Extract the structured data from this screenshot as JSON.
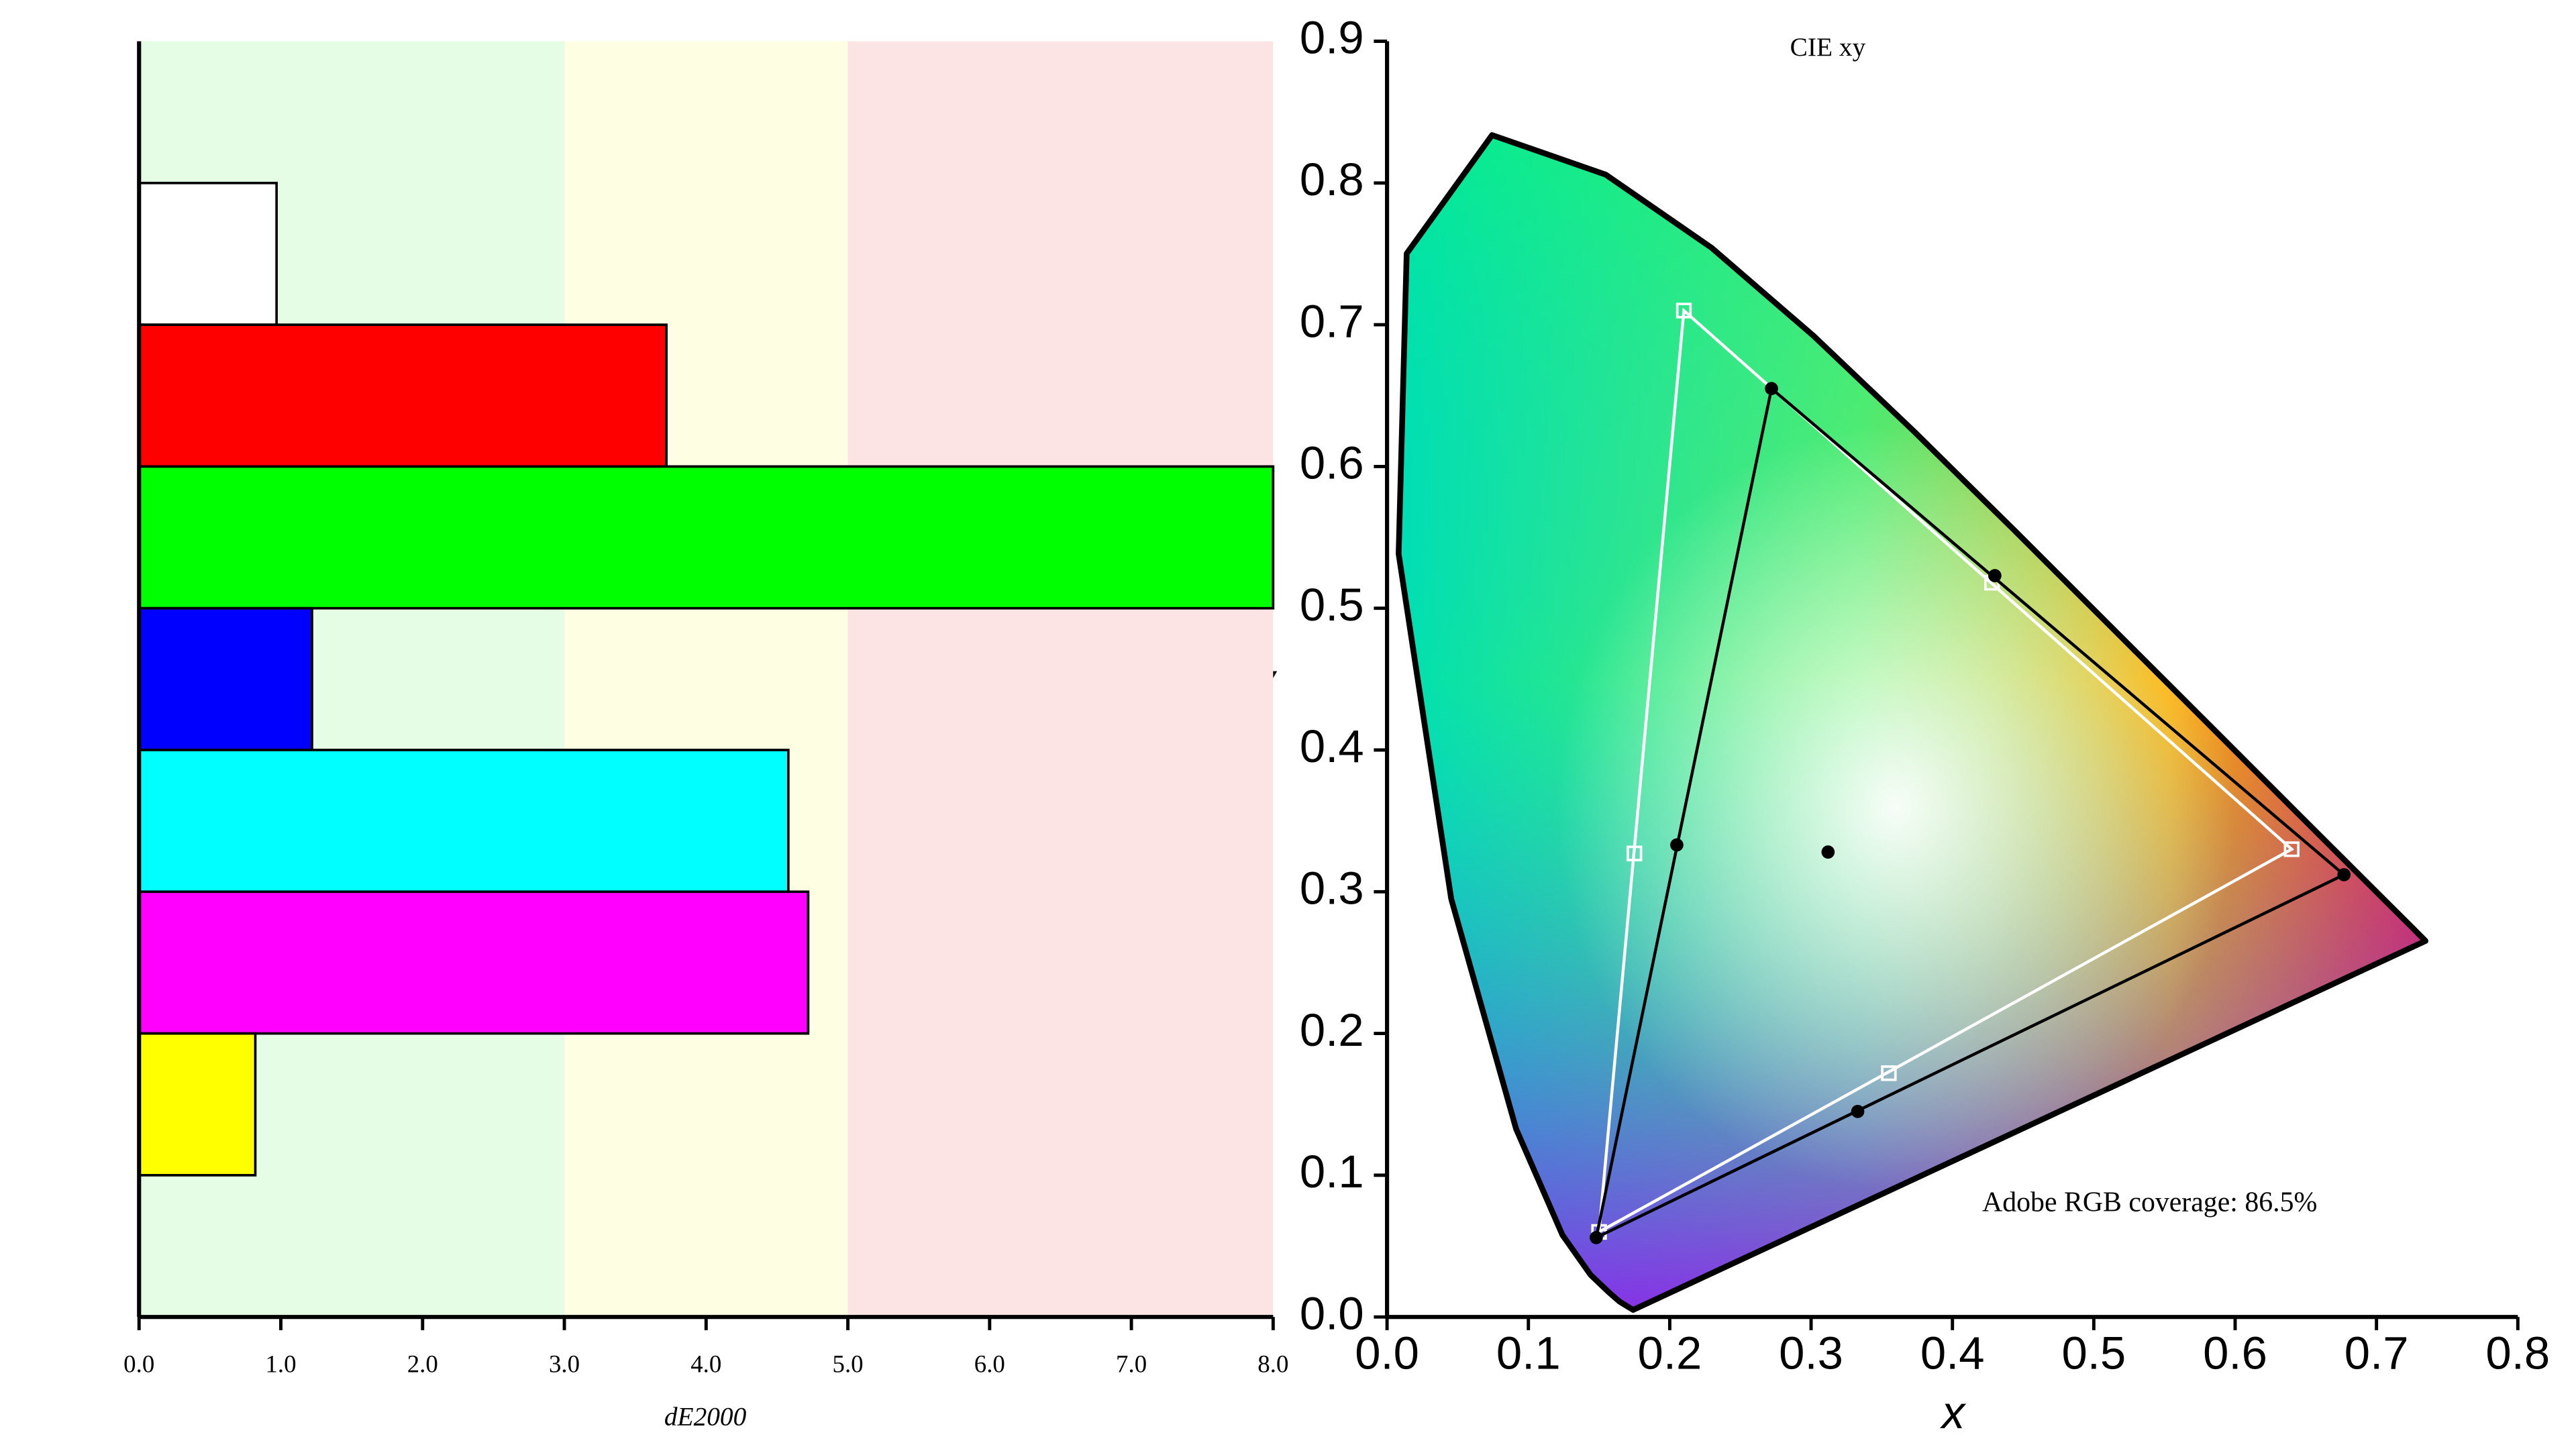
{
  "chart_data": [
    {
      "type": "bar",
      "orientation": "horizontal",
      "categories": [
        null,
        null,
        null,
        null,
        null,
        null,
        null,
        null,
        null
      ],
      "values": [
        null,
        0.97,
        3.72,
        8.0,
        1.22,
        4.58,
        4.72,
        0.82,
        null
      ],
      "colors": [
        null,
        "#ffffff",
        "#ff0000",
        "#00ff00",
        "#0000ff",
        "#00ffff",
        "#ff00ff",
        "#ffff00",
        null
      ],
      "xlabel": "dE2000",
      "xlim": [
        0,
        8
      ],
      "xticks": [
        {
          "value": 0,
          "label": "0.0"
        },
        {
          "value": 1,
          "label": "1.0"
        },
        {
          "value": 2,
          "label": "2.0"
        },
        {
          "value": 3,
          "label": "3.0"
        },
        {
          "value": 4,
          "label": "4.0"
        },
        {
          "value": 5,
          "label": "5.0"
        },
        {
          "value": 6,
          "label": "6.0"
        },
        {
          "value": 7,
          "label": "7.0"
        },
        {
          "value": 8,
          "label": "8.0"
        }
      ],
      "bands": [
        {
          "from": 0,
          "to": 3,
          "color": "#e5fde5"
        },
        {
          "from": 3,
          "to": 5,
          "color": "#fefee2"
        },
        {
          "from": 5,
          "to": 8,
          "color": "#fde4e4"
        }
      ]
    },
    {
      "type": "scatter",
      "title": "CIE xy",
      "xlabel": "x",
      "ylabel": "y",
      "annotation": "Adobe RGB coverage: 86.5%",
      "xlim": [
        0,
        0.8
      ],
      "ylim": [
        0,
        0.9
      ],
      "xticks": [
        {
          "value": 0,
          "label": "0.0"
        },
        0.1,
        0.2,
        0.3,
        0.4,
        0.5,
        0.6,
        0.7,
        0.8
      ],
      "yticks": [
        {
          "value": 0,
          "label": "0.0"
        },
        0.1,
        0.2,
        0.3,
        0.4,
        0.5,
        0.6,
        0.7,
        0.8,
        0.9
      ],
      "locus": {
        "x": [
          0.1741,
          0.1644,
          0.1566,
          0.144,
          0.1241,
          0.0913,
          0.0454,
          0.0082,
          0.0139,
          0.0743,
          0.1547,
          0.2296,
          0.3016,
          0.3731,
          0.4441,
          0.5125,
          0.5752,
          0.627,
          0.6915,
          0.726,
          0.7347
        ],
        "y": [
          0.005,
          0.0109,
          0.0177,
          0.0297,
          0.0578,
          0.1327,
          0.295,
          0.5384,
          0.7502,
          0.8338,
          0.8059,
          0.7543,
          0.6923,
          0.6245,
          0.5547,
          0.4866,
          0.4242,
          0.3725,
          0.3083,
          0.274,
          0.2653
        ]
      },
      "series": [
        {
          "color": "#ffffff",
          "marker": "square",
          "x": [
            0.64,
            0.21,
            0.15,
            0.175,
            0.355,
            0.428
          ],
          "y": [
            0.33,
            0.71,
            0.06,
            0.327,
            0.172,
            0.518
          ]
        },
        {
          "color": "#000000",
          "marker": "dot",
          "x": [
            0.677,
            0.272,
            0.148,
            0.205,
            0.333,
            0.43,
            0.312
          ],
          "y": [
            0.312,
            0.655,
            0.056,
            0.333,
            0.145,
            0.523,
            0.328
          ]
        }
      ]
    }
  ]
}
